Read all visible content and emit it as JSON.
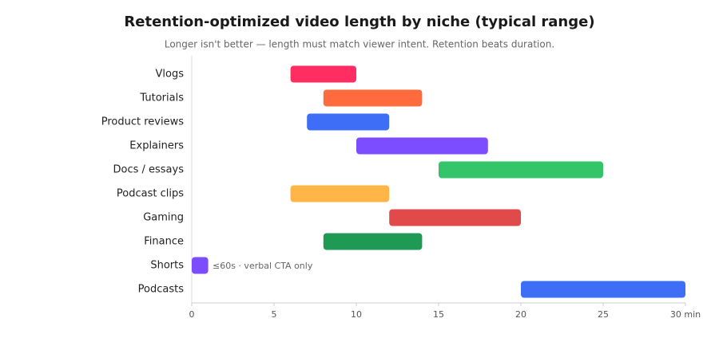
{
  "chart_data": {
    "type": "range-bar",
    "title": "Retention-optimized video length by niche (typical range)",
    "subtitle": "Longer isn't better — length must match viewer intent. Retention beats duration.",
    "categories": [
      "Vlogs",
      "Tutorials",
      "Product reviews",
      "Explainers",
      "Docs / essays",
      "Podcast clips",
      "Gaming",
      "Finance",
      "Shorts",
      "Podcasts"
    ],
    "starts": [
      6,
      8,
      7,
      10,
      15,
      6,
      12,
      8,
      0,
      20
    ],
    "ends": [
      10,
      14,
      12,
      18,
      25,
      12,
      20,
      14,
      1,
      30
    ],
    "colors": [
      "#ff2d62",
      "#ff6b3d",
      "#3d6ef5",
      "#7c4dff",
      "#34c46a",
      "#ffb547",
      "#e04a4a",
      "#1e9a54",
      "#7c4dff",
      "#3d6ef5"
    ],
    "annotation": "≤60s · verbal CTA only",
    "xlim": [
      0,
      30
    ],
    "xticks": [
      0,
      5,
      10,
      15,
      20,
      25,
      {
        "value": 30,
        "label": "30 min"
      }
    ]
  }
}
